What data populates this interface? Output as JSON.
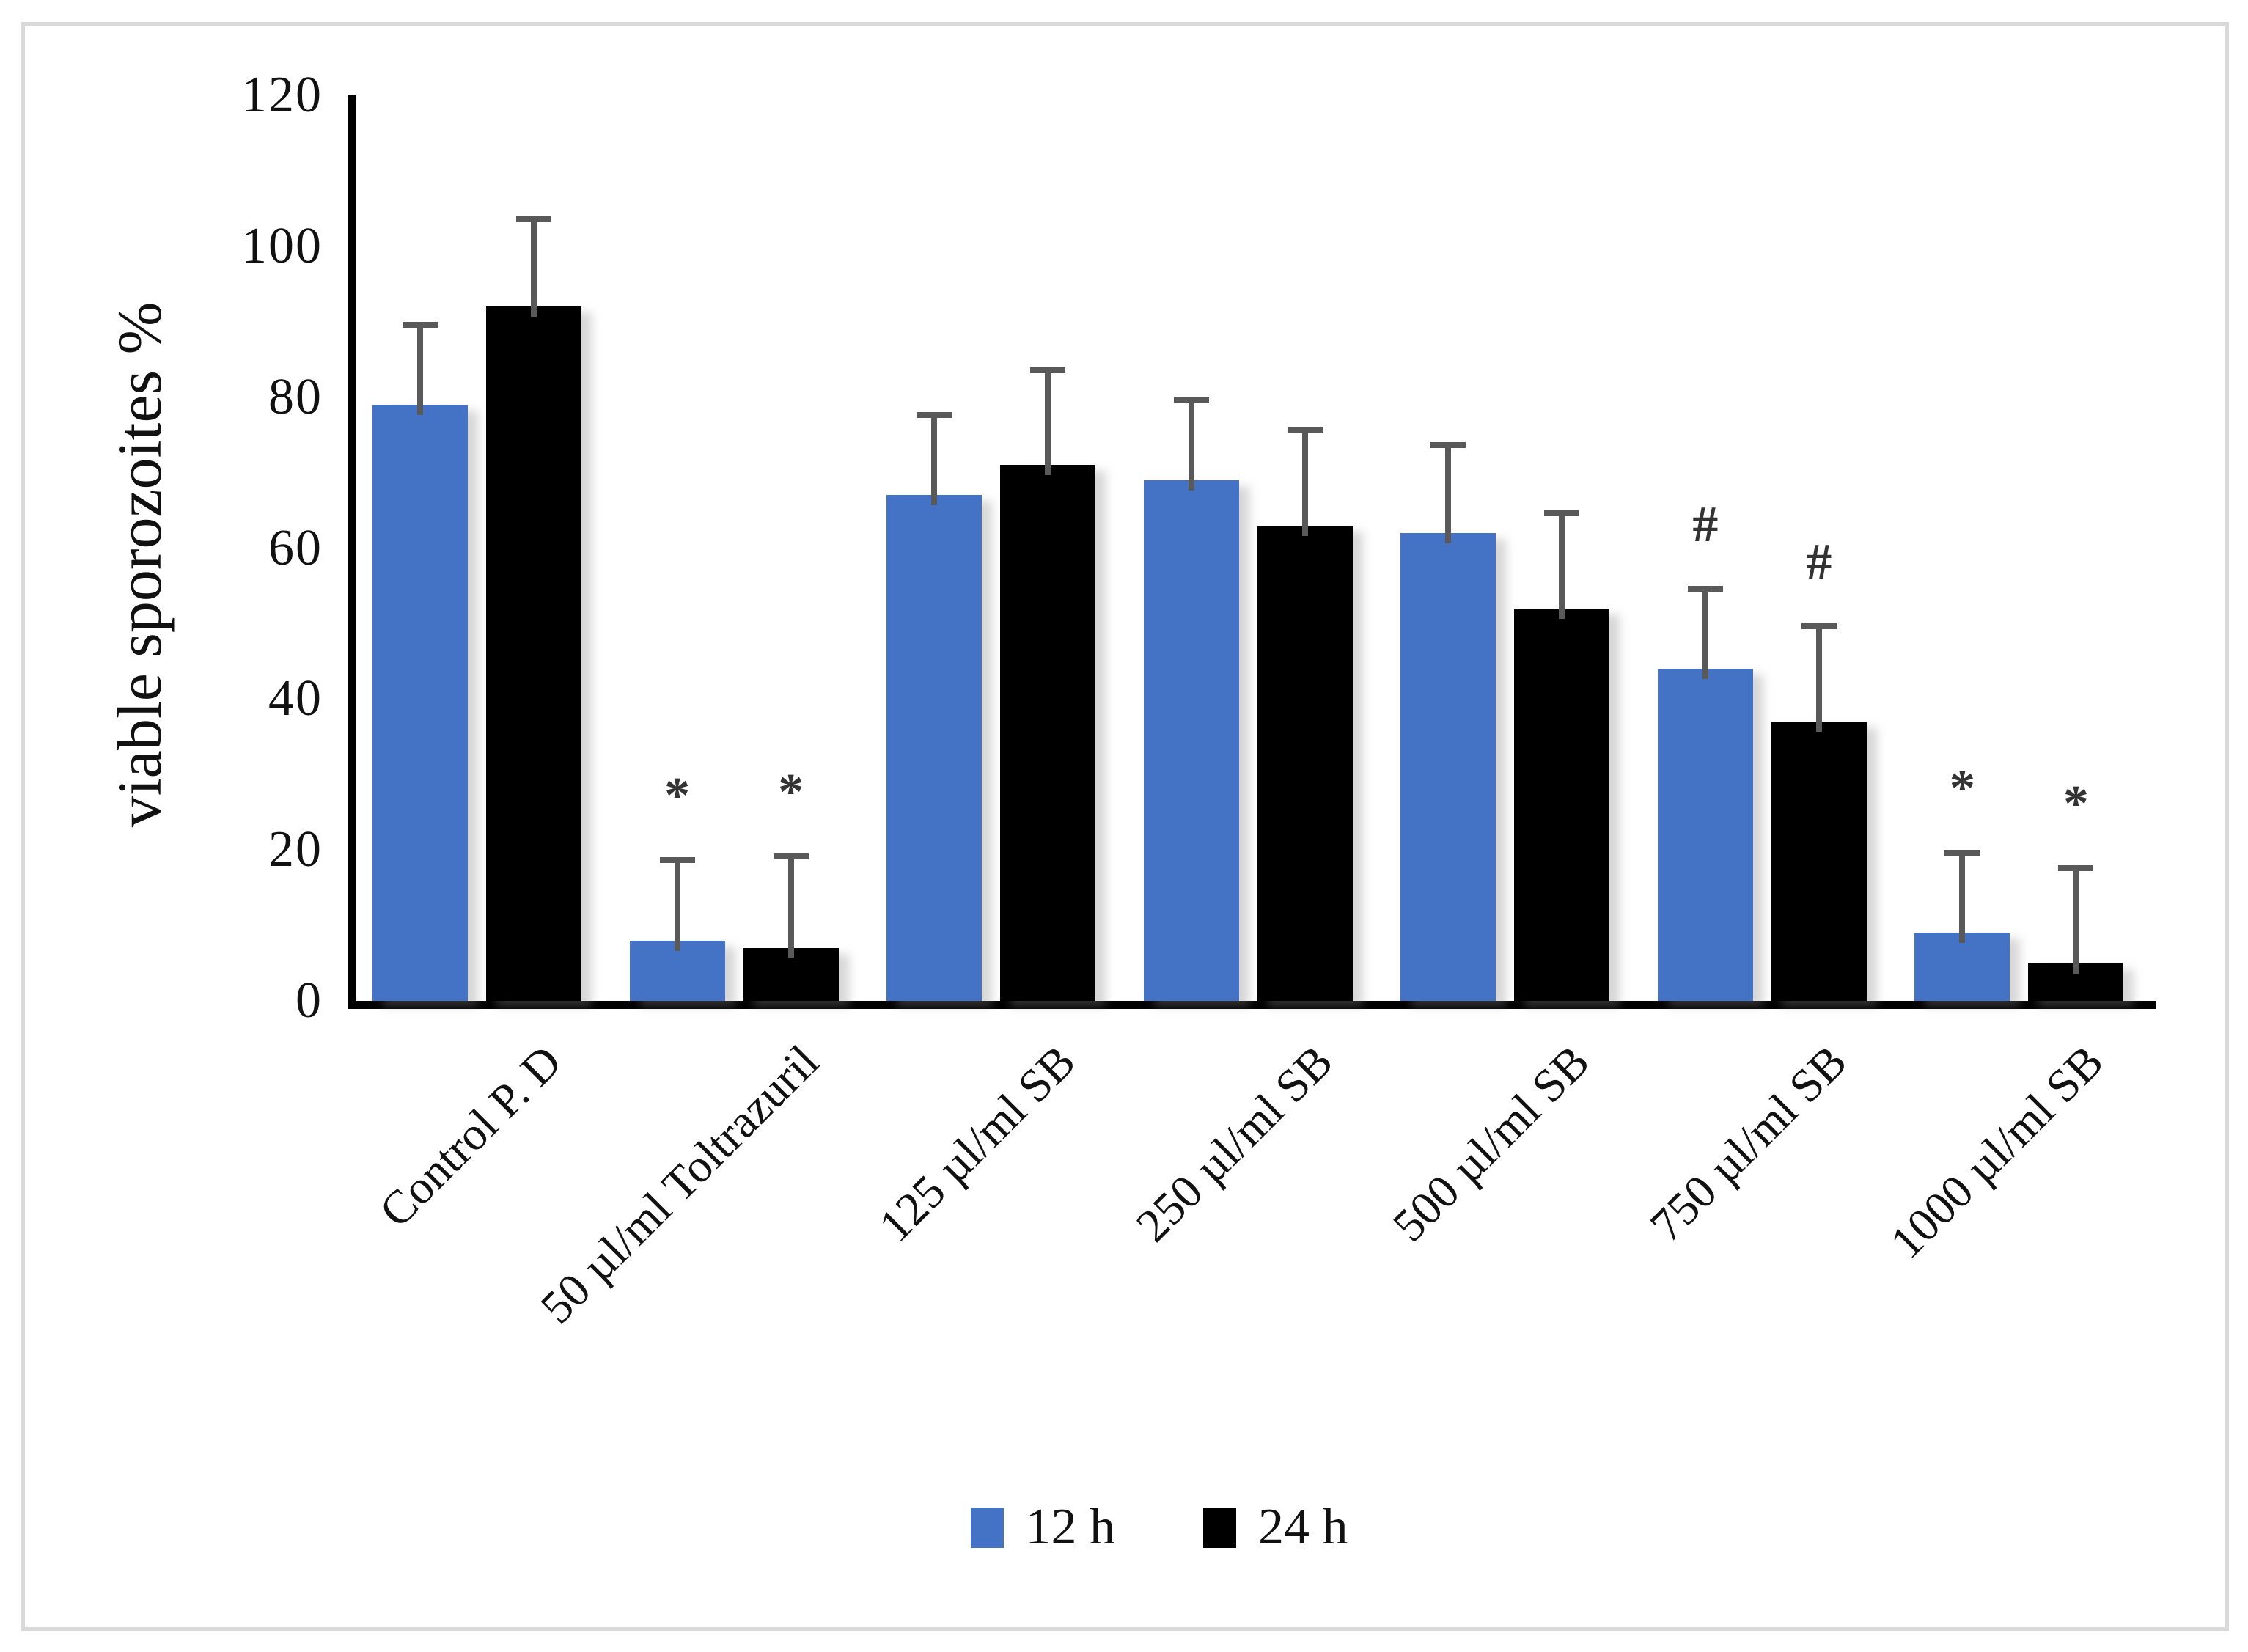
{
  "figure": {
    "border_color": "#d9d9d9",
    "background_color": "#ffffff"
  },
  "chart_data": {
    "type": "bar",
    "title": "",
    "xlabel": "",
    "ylabel": "viable sporozoites %",
    "ylim": [
      0,
      120
    ],
    "yticks": [
      0,
      20,
      40,
      60,
      80,
      100,
      120
    ],
    "grid": false,
    "legend_position": "bottom-center",
    "categories": [
      "Control P. D",
      "50 µl/ml Toltrazuril",
      "125 µl/ml SB",
      "250 µl/ml SB",
      "500 µl/ml SB",
      "750 µl/ml SB",
      "1000 µl/ml SB"
    ],
    "series": [
      {
        "name": "12 h",
        "color": "#4472C4",
        "values": [
          79,
          8,
          67,
          69,
          62,
          44,
          9
        ],
        "error_up": [
          11,
          11,
          11,
          11,
          12,
          11,
          11
        ],
        "annotations": [
          "",
          "*",
          "",
          "",
          "",
          "#",
          "*"
        ]
      },
      {
        "name": "24 h",
        "color": "#000000",
        "values": [
          92,
          7,
          71,
          63,
          52,
          37,
          5
        ],
        "error_up": [
          12,
          12.5,
          13,
          13,
          13,
          13,
          13
        ],
        "annotations": [
          "",
          "*",
          "",
          "",
          "",
          "#",
          "*"
        ]
      }
    ],
    "error_bar_color": "#595959",
    "annotation_color": "#333333"
  },
  "legend": {
    "items": [
      {
        "label": "12 h",
        "color": "#4472C4"
      },
      {
        "label": "24 h",
        "color": "#000000"
      }
    ]
  }
}
